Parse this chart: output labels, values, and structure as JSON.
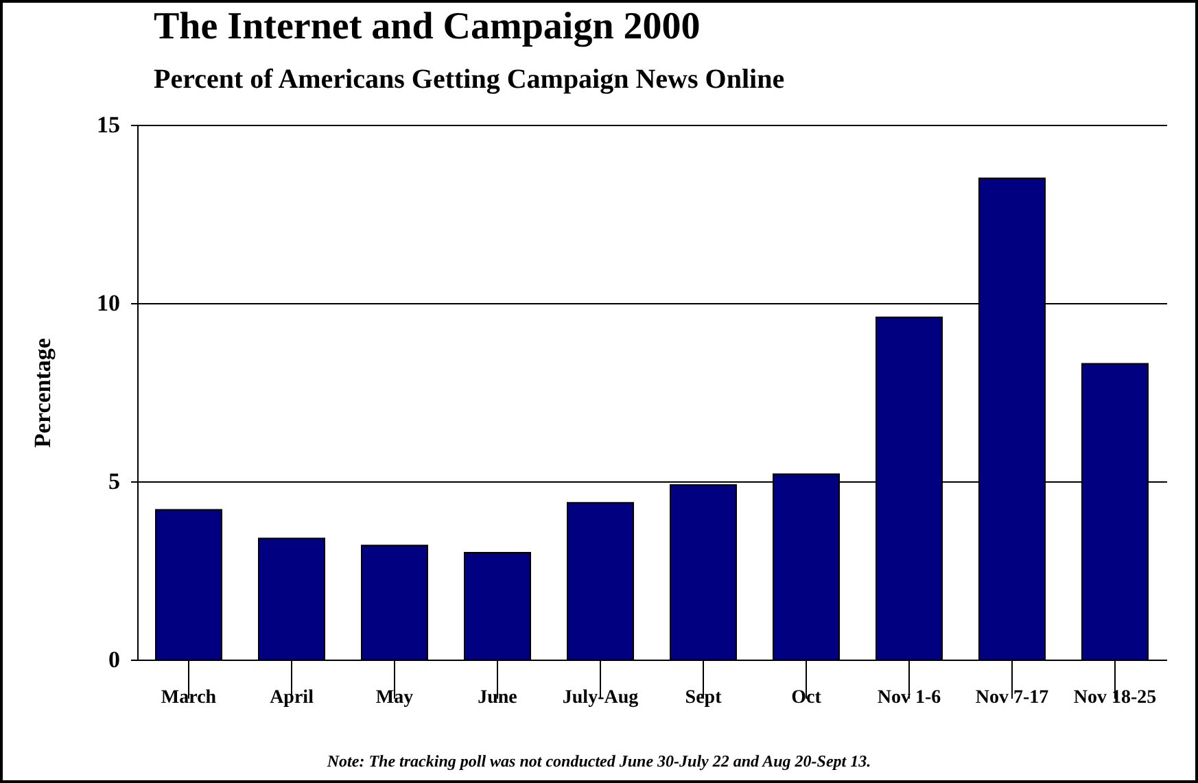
{
  "chart_data": {
    "type": "bar",
    "title": "The Internet and Campaign 2000",
    "subtitle": "Percent of Americans Getting Campaign News Online",
    "ylabel": "Percentage",
    "categories": [
      "March",
      "April",
      "May",
      "June",
      "July-Aug",
      "Sept",
      "Oct",
      "Nov 1-6",
      "Nov 7-17",
      "Nov 18-25"
    ],
    "values": [
      4.2,
      3.4,
      3.2,
      3.0,
      4.4,
      4.9,
      5.2,
      9.6,
      13.5,
      8.3
    ],
    "color": "#000080",
    "ylim": [
      0,
      15
    ],
    "yticks": [
      0,
      5,
      10,
      15
    ],
    "grid": "y",
    "annotations": [
      "Note: The tracking poll was not conducted June 30-July 22 and Aug 20-Sept 13."
    ]
  }
}
